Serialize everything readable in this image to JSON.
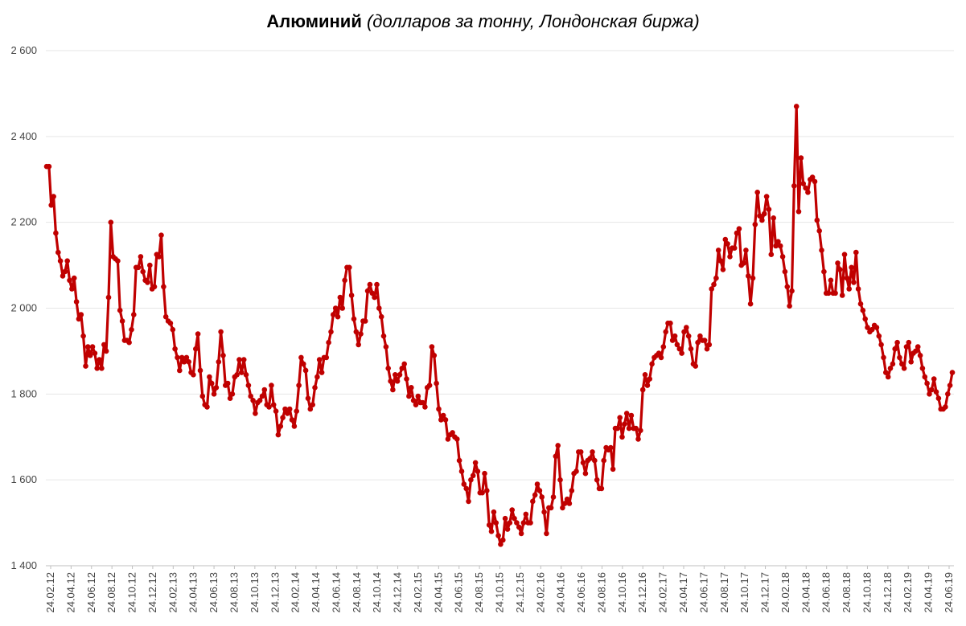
{
  "chart_data": {
    "type": "line",
    "title": "Алюминий",
    "subtitle": "(долларов за тонну, Лондонская биржа)",
    "xlabel": "",
    "ylabel": "",
    "ylim": [
      1400,
      2600
    ],
    "y_ticks": [
      1400,
      1600,
      1800,
      2000,
      2200,
      2400,
      2600
    ],
    "y_tick_labels": [
      "1 400",
      "1 600",
      "1 800",
      "2 000",
      "2 200",
      "2 400",
      "2 600"
    ],
    "x_tick_labels": [
      "24.02.12",
      "24.04.12",
      "24.06.12",
      "24.08.12",
      "24.10.12",
      "24.12.12",
      "24.02.13",
      "24.04.13",
      "24.06.13",
      "24.08.13",
      "24.10.13",
      "24.12.13",
      "24.02.14",
      "24.04.14",
      "24.06.14",
      "24.08.14",
      "24.10.14",
      "24.12.14",
      "24.02.15",
      "24.04.15",
      "24.06.15",
      "24.08.15",
      "24.10.15",
      "24.12.15",
      "24.02.16",
      "24.04.16",
      "24.06.16",
      "24.08.16",
      "24.10.16",
      "24.12.16",
      "24.02.17",
      "24.04.17",
      "24.06.17",
      "24.08.17",
      "24.10.17",
      "24.12.17",
      "24.02.18",
      "24.04.18",
      "24.06.18",
      "24.08.18",
      "24.10.18",
      "24.12.18",
      "24.02.19",
      "24.04.19",
      "24.06.19"
    ],
    "grid": true,
    "legend": "none",
    "series_color": "#c00000",
    "series": [
      {
        "values": [
          2330,
          2330,
          2240,
          2260,
          2175,
          2130,
          2110,
          2075,
          2085,
          2110,
          2065,
          2045,
          2070,
          2015,
          1975,
          1985,
          1935,
          1865,
          1910,
          1890,
          1910,
          1895,
          1860,
          1880,
          1860,
          1915,
          1900,
          2025,
          2200,
          2120,
          2115,
          2110,
          1995,
          1970,
          1925,
          1925,
          1920,
          1950,
          1985,
          2095,
          2095,
          2120,
          2085,
          2065,
          2060,
          2100,
          2045,
          2050,
          2125,
          2120,
          2170,
          2050,
          1980,
          1970,
          1965,
          1950,
          1905,
          1885,
          1855,
          1885,
          1875,
          1885,
          1875,
          1850,
          1845,
          1905,
          1940,
          1855,
          1795,
          1775,
          1770,
          1840,
          1825,
          1800,
          1815,
          1875,
          1945,
          1890,
          1820,
          1825,
          1790,
          1800,
          1840,
          1845,
          1880,
          1850,
          1880,
          1845,
          1820,
          1795,
          1785,
          1755,
          1780,
          1785,
          1795,
          1810,
          1775,
          1770,
          1820,
          1775,
          1760,
          1705,
          1725,
          1745,
          1765,
          1755,
          1765,
          1740,
          1725,
          1760,
          1820,
          1885,
          1870,
          1855,
          1790,
          1765,
          1775,
          1815,
          1840,
          1880,
          1850,
          1885,
          1885,
          1920,
          1945,
          1985,
          2000,
          1980,
          2025,
          2000,
          2065,
          2095,
          2095,
          2030,
          1975,
          1945,
          1915,
          1940,
          1970,
          1970,
          2040,
          2055,
          2035,
          2025,
          2055,
          2000,
          1980,
          1935,
          1910,
          1860,
          1830,
          1810,
          1845,
          1830,
          1845,
          1860,
          1870,
          1835,
          1795,
          1815,
          1785,
          1775,
          1795,
          1780,
          1780,
          1770,
          1815,
          1820,
          1910,
          1890,
          1825,
          1765,
          1740,
          1750,
          1740,
          1695,
          1705,
          1710,
          1700,
          1695,
          1645,
          1620,
          1590,
          1580,
          1550,
          1600,
          1610,
          1640,
          1620,
          1570,
          1570,
          1615,
          1575,
          1495,
          1480,
          1525,
          1500,
          1470,
          1450,
          1460,
          1510,
          1485,
          1500,
          1530,
          1510,
          1500,
          1490,
          1475,
          1500,
          1520,
          1500,
          1500,
          1550,
          1565,
          1590,
          1575,
          1560,
          1525,
          1475,
          1535,
          1535,
          1560,
          1655,
          1680,
          1600,
          1535,
          1545,
          1555,
          1545,
          1575,
          1615,
          1620,
          1665,
          1665,
          1640,
          1615,
          1645,
          1650,
          1665,
          1645,
          1600,
          1580,
          1580,
          1645,
          1675,
          1670,
          1675,
          1625,
          1720,
          1720,
          1745,
          1700,
          1730,
          1755,
          1720,
          1750,
          1720,
          1720,
          1695,
          1715,
          1810,
          1845,
          1820,
          1835,
          1870,
          1885,
          1890,
          1895,
          1885,
          1910,
          1945,
          1965,
          1965,
          1925,
          1935,
          1915,
          1905,
          1895,
          1945,
          1955,
          1935,
          1905,
          1870,
          1865,
          1920,
          1935,
          1925,
          1925,
          1905,
          1915,
          2045,
          2055,
          2070,
          2135,
          2110,
          2090,
          2160,
          2150,
          2120,
          2140,
          2140,
          2175,
          2185,
          2100,
          2105,
          2135,
          2075,
          2010,
          2070,
          2195,
          2270,
          2215,
          2205,
          2220,
          2260,
          2230,
          2125,
          2210,
          2145,
          2155,
          2145,
          2120,
          2085,
          2050,
          2005,
          2040,
          2285,
          2470,
          2225,
          2350,
          2290,
          2280,
          2270,
          2300,
          2305,
          2295,
          2205,
          2180,
          2135,
          2085,
          2035,
          2035,
          2065,
          2035,
          2035,
          2105,
          2090,
          2030,
          2125,
          2070,
          2045,
          2095,
          2060,
          2130,
          2045,
          2010,
          1995,
          1975,
          1955,
          1945,
          1950,
          1960,
          1955,
          1935,
          1915,
          1885,
          1850,
          1840,
          1860,
          1870,
          1905,
          1920,
          1885,
          1870,
          1860,
          1910,
          1920,
          1875,
          1895,
          1900,
          1910,
          1890,
          1860,
          1840,
          1825,
          1800,
          1810,
          1835,
          1805,
          1790,
          1765,
          1765,
          1770,
          1800,
          1820,
          1850
        ]
      }
    ]
  }
}
